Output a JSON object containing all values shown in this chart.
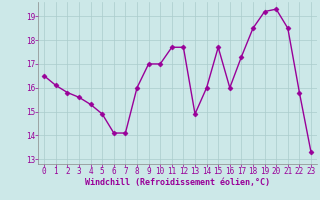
{
  "x": [
    0,
    1,
    2,
    3,
    4,
    5,
    6,
    7,
    8,
    9,
    10,
    11,
    12,
    13,
    14,
    15,
    16,
    17,
    18,
    19,
    20,
    21,
    22,
    23
  ],
  "y": [
    16.5,
    16.1,
    15.8,
    15.6,
    15.3,
    14.9,
    14.1,
    14.1,
    16.0,
    17.0,
    17.0,
    17.7,
    17.7,
    14.9,
    16.0,
    17.7,
    16.0,
    17.3,
    18.5,
    19.2,
    19.3,
    18.5,
    15.8,
    13.3
  ],
  "line_color": "#990099",
  "marker": "D",
  "markersize": 2.5,
  "linewidth": 1.0,
  "bg_color": "#cce8e8",
  "grid_color": "#aacccc",
  "xlabel": "Windchill (Refroidissement éolien,°C)",
  "xlabel_color": "#990099",
  "tick_color": "#990099",
  "label_color": "#990099",
  "ylim": [
    12.8,
    19.6
  ],
  "xlim": [
    -0.5,
    23.5
  ],
  "yticks": [
    13,
    14,
    15,
    16,
    17,
    18,
    19
  ],
  "xticks": [
    0,
    1,
    2,
    3,
    4,
    5,
    6,
    7,
    8,
    9,
    10,
    11,
    12,
    13,
    14,
    15,
    16,
    17,
    18,
    19,
    20,
    21,
    22,
    23
  ],
  "tick_fontsize": 5.5,
  "xlabel_fontsize": 6.0
}
